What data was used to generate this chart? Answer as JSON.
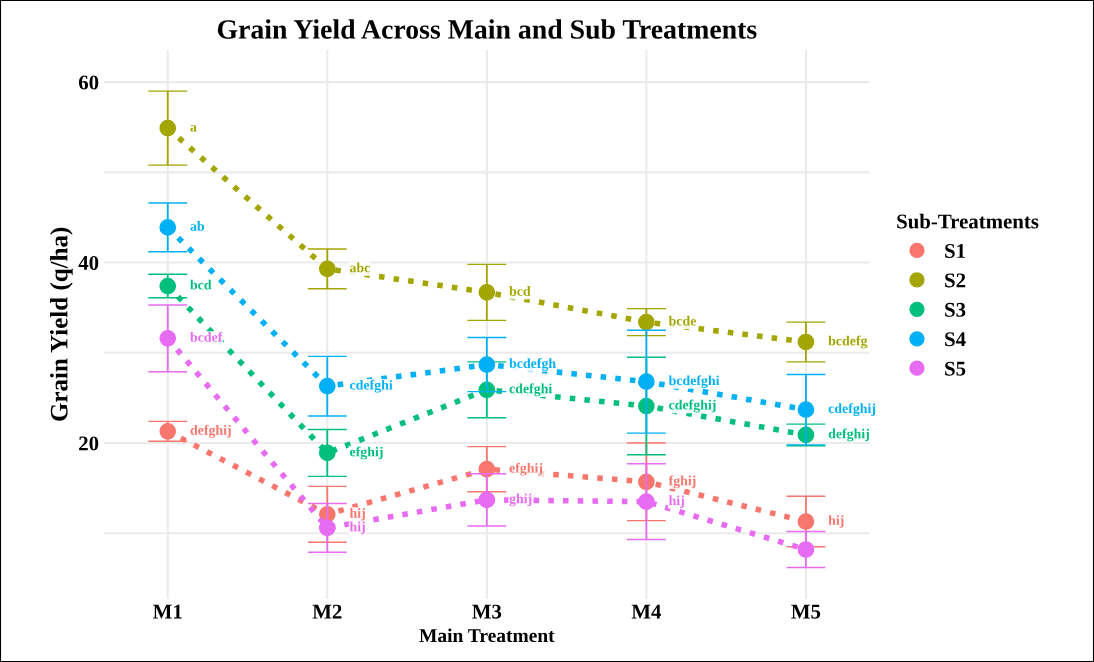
{
  "chart_data": {
    "type": "line",
    "title": "Grain Yield Across Main and Sub Treatments",
    "xlabel": "Main Treatment",
    "ylabel": "Grain Yield (q/ha)",
    "legend_title": "Sub-Treatments",
    "categories": [
      "M1",
      "M2",
      "M3",
      "M4",
      "M5"
    ],
    "series": [
      {
        "name": "S1",
        "color": "#f8766d",
        "values": [
          21.3,
          12.1,
          17.1,
          15.7,
          11.3
        ],
        "errors": [
          1.1,
          3.1,
          2.5,
          4.3,
          2.8
        ]
      },
      {
        "name": "S2",
        "color": "#a3a500",
        "values": [
          54.9,
          39.3,
          36.7,
          33.4,
          31.2
        ],
        "errors": [
          4.1,
          2.2,
          3.1,
          1.5,
          2.2
        ]
      },
      {
        "name": "S3",
        "color": "#00bf7d",
        "values": [
          37.4,
          18.9,
          25.9,
          24.1,
          20.9
        ],
        "errors": [
          1.3,
          2.6,
          3.1,
          5.4,
          1.2
        ]
      },
      {
        "name": "S4",
        "color": "#00b0f6",
        "values": [
          43.9,
          26.3,
          28.7,
          26.8,
          23.7
        ],
        "errors": [
          2.7,
          3.3,
          3.0,
          5.7,
          3.9
        ]
      },
      {
        "name": "S5",
        "color": "#e76bf3",
        "values": [
          31.6,
          10.6,
          13.7,
          13.5,
          8.2
        ],
        "errors": [
          3.7,
          2.7,
          2.9,
          4.2,
          2.0
        ]
      }
    ],
    "annotations": [
      {
        "text": "defghij",
        "x": "M1",
        "y": 21.3
      },
      {
        "text": "hij",
        "x": "M2",
        "y": 12.1
      },
      {
        "text": "efghij",
        "x": "M3",
        "y": 17.1
      },
      {
        "text": "fghij",
        "x": "M4",
        "y": 15.7
      },
      {
        "text": "hij",
        "x": "M5",
        "y": 11.3
      },
      {
        "text": "a",
        "x": "M1",
        "y": 54.9
      },
      {
        "text": "abc",
        "x": "M2",
        "y": 39.3
      },
      {
        "text": "bcd",
        "x": "M3",
        "y": 36.7
      },
      {
        "text": "bcde",
        "x": "M4",
        "y": 33.4
      },
      {
        "text": "bcdefg",
        "x": "M5",
        "y": 31.2
      },
      {
        "text": "bcd",
        "x": "M1",
        "y": 37.4
      },
      {
        "text": "efghij",
        "x": "M2",
        "y": 18.9
      },
      {
        "text": "cdefghi",
        "x": "M3",
        "y": 25.9
      },
      {
        "text": "cdefghij",
        "x": "M4",
        "y": 24.1
      },
      {
        "text": "defghij",
        "x": "M5",
        "y": 20.9
      },
      {
        "text": "ab",
        "x": "M1",
        "y": 43.9
      },
      {
        "text": "cdefghi",
        "x": "M2",
        "y": 26.3
      },
      {
        "text": "bcdefgh",
        "x": "M3",
        "y": 28.7
      },
      {
        "text": "bcdefghi",
        "x": "M4",
        "y": 26.8
      },
      {
        "text": "cdefghij",
        "x": "M5",
        "y": 23.7
      },
      {
        "text": "bcdef",
        "x": "M1",
        "y": 31.6
      },
      {
        "text": "hij",
        "x": "M2",
        "y": 10.6
      },
      {
        "text": "ghij",
        "x": "M3",
        "y": 13.7
      },
      {
        "text": "hij",
        "x": "M4",
        "y": 13.5
      }
    ],
    "ylim": [
      2.7,
      63.6
    ],
    "yticks": [
      {
        "value": 10,
        "label": null
      },
      20,
      {
        "value": 30,
        "label": null
      },
      40,
      {
        "value": 50,
        "label": null
      },
      60
    ],
    "grid": true,
    "legend": "right",
    "marker": "circle",
    "line_style": "dotted"
  }
}
